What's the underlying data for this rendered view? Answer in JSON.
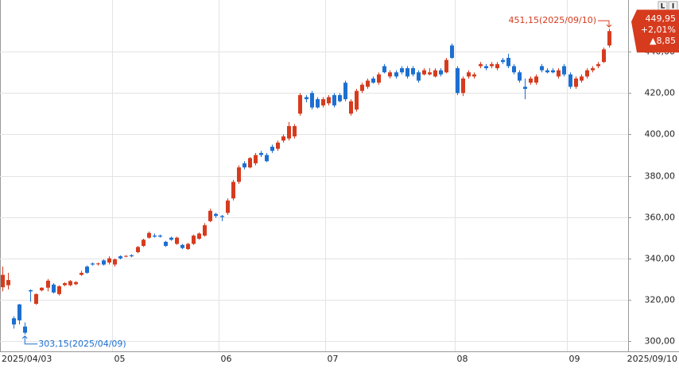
{
  "chart_data": {
    "type": "candlestick",
    "categories": [
      "2025/04/03",
      null,
      null,
      null,
      null,
      null,
      null,
      null,
      null,
      null,
      null,
      null,
      null,
      null,
      null,
      null,
      null,
      null,
      null,
      null,
      "05",
      null,
      null,
      null,
      null,
      null,
      null,
      null,
      null,
      null,
      null,
      null,
      null,
      null,
      null,
      null,
      null,
      null,
      null,
      "06",
      null,
      null,
      null,
      null,
      null,
      null,
      null,
      null,
      null,
      null,
      null,
      null,
      null,
      null,
      null,
      null,
      null,
      null,
      "07",
      null,
      null,
      null,
      null,
      null,
      null,
      null,
      null,
      null,
      null,
      null,
      null,
      null,
      null,
      null,
      null,
      null,
      null,
      null,
      null,
      null,
      null,
      "08",
      null,
      null,
      null,
      null,
      null,
      null,
      null,
      null,
      null,
      null,
      null,
      null,
      null,
      null,
      null,
      null,
      null,
      null,
      null,
      "09",
      null,
      null,
      null,
      null,
      null,
      null,
      "2025/09/10"
    ],
    "open": [
      326,
      327,
      311,
      317.7,
      307,
      324.6,
      318,
      324.5,
      325.8,
      327.3,
      322.7,
      327,
      327,
      327.5,
      332,
      336,
      337.5,
      337.3,
      339,
      338,
      337,
      341,
      341,
      341.5,
      343,
      346,
      350,
      351,
      351,
      348,
      350,
      347,
      346.5,
      344.5,
      347,
      349.5,
      351,
      358,
      361.5,
      360.5,
      362,
      369,
      377,
      386,
      384,
      386,
      391,
      390,
      394,
      393,
      397,
      398,
      399,
      410,
      418,
      420,
      417,
      414,
      415,
      419,
      419,
      425,
      410,
      412,
      421,
      423,
      427,
      425,
      433,
      428,
      430,
      432,
      432,
      432,
      430,
      429,
      429,
      428,
      431,
      430,
      443,
      432,
      420,
      428,
      428,
      433,
      433,
      433,
      432,
      436,
      437,
      433,
      430,
      423,
      425,
      425,
      433,
      431,
      431,
      428,
      433,
      429,
      423,
      426,
      428,
      431,
      433,
      435,
      443
    ],
    "high": [
      336,
      333,
      312,
      318,
      309,
      325,
      323,
      326,
      330,
      328,
      327,
      328.5,
      329.5,
      329,
      334,
      336.5,
      338,
      338,
      339.5,
      341,
      340,
      341.5,
      341.5,
      342,
      346,
      349.5,
      353,
      352,
      351.5,
      348.5,
      350.5,
      350.5,
      347,
      347.5,
      351.5,
      352.5,
      357,
      364,
      362,
      361,
      369,
      378,
      385,
      387,
      389,
      391,
      392,
      391,
      395,
      397,
      400,
      406,
      405,
      420,
      419,
      421,
      418,
      418,
      419,
      420,
      420,
      426,
      417,
      422,
      425,
      427,
      428,
      430,
      434,
      431,
      431,
      433,
      433,
      433,
      431,
      432,
      432,
      432,
      432,
      437,
      444,
      433,
      428,
      431,
      430,
      435,
      434,
      435,
      435,
      437,
      439,
      434,
      431,
      427,
      428,
      429,
      434,
      432,
      432,
      432,
      434,
      430,
      428,
      429,
      432,
      433,
      435,
      442,
      451.15
    ],
    "low": [
      324,
      325,
      306,
      308,
      303.15,
      319,
      317.5,
      324,
      324,
      323,
      322,
      326.5,
      326.5,
      327,
      331.5,
      332.5,
      336.5,
      336.5,
      336.5,
      337,
      336,
      339.5,
      340.5,
      340.5,
      342.5,
      345.5,
      349.5,
      350,
      350,
      345.5,
      348.5,
      346.5,
      344.5,
      344,
      346.5,
      349,
      350.5,
      357.5,
      359.5,
      358,
      361,
      368,
      376,
      383,
      383.5,
      385,
      389,
      386.5,
      391,
      392,
      396,
      397,
      398,
      409,
      415.5,
      412,
      412.5,
      413,
      414,
      413,
      415.5,
      416,
      409,
      411,
      420,
      422,
      424.5,
      424,
      429.5,
      427,
      427,
      429,
      427,
      428,
      425,
      428.5,
      428.5,
      427.5,
      428,
      429.5,
      436.5,
      419,
      418.5,
      427,
      427,
      432,
      431,
      432,
      431,
      434,
      432,
      429,
      425,
      417,
      424,
      424,
      430,
      429.5,
      429.5,
      427,
      428,
      422,
      422,
      425,
      427,
      430,
      432,
      434.5,
      442
    ],
    "close": [
      332,
      329.5,
      308,
      310,
      304,
      324,
      322.7,
      325.8,
      329.2,
      323.5,
      326.5,
      328,
      329,
      328.5,
      333,
      333,
      337,
      337.5,
      337,
      340,
      339.5,
      340,
      341.2,
      341,
      345.5,
      349,
      352.3,
      350.5,
      350.5,
      346,
      349,
      350,
      345,
      347,
      351,
      352,
      356,
      363,
      360.5,
      360,
      368,
      377,
      384,
      384,
      388.5,
      390,
      390,
      387,
      392,
      396,
      399,
      404,
      404,
      419,
      417,
      413,
      413,
      417,
      418,
      414,
      416,
      417,
      416,
      421,
      424,
      426,
      425,
      429,
      430,
      430,
      428,
      430,
      428,
      429,
      426,
      431,
      430,
      431,
      429,
      436,
      437,
      420,
      427,
      430,
      429,
      434,
      432,
      434,
      434,
      435,
      433,
      430,
      426,
      422,
      427,
      428,
      431,
      430,
      430,
      431,
      429,
      423,
      427,
      428,
      431,
      432,
      434,
      441.1,
      449.95
    ],
    "up_color": "#d63b1e",
    "down_color": "#1d6fd1",
    "ylim": [
      295,
      465
    ],
    "yticks": [
      {
        "value": 300,
        "label": "300,00"
      },
      {
        "value": 320,
        "label": "320,00"
      },
      {
        "value": 340,
        "label": "340,00"
      },
      {
        "value": 360,
        "label": "360,00"
      },
      {
        "value": 380,
        "label": "380,00"
      },
      {
        "value": 400,
        "label": "400,00"
      },
      {
        "value": 420,
        "label": "420,00"
      },
      {
        "value": 440,
        "label": "440,00"
      }
    ],
    "grid": true,
    "max_annotation": "451,15(2025/09/10)",
    "min_annotation": "303,15(2025/04/09)",
    "price_box": {
      "price": "449,95",
      "change_pct": "+2,01%",
      "change": "▲8,85"
    },
    "buttons": [
      "L",
      "I"
    ]
  }
}
